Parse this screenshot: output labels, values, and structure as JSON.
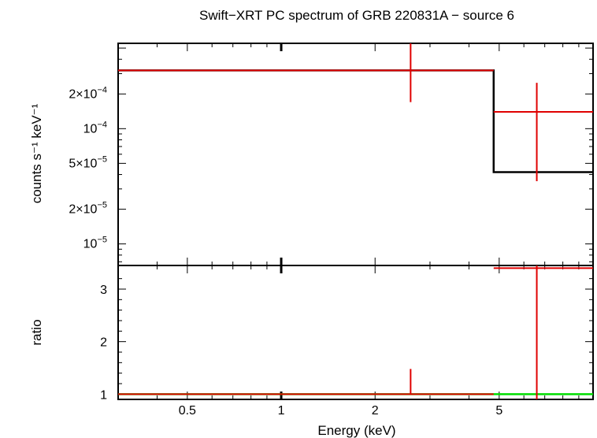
{
  "chart_data": {
    "type": "line",
    "title": "Swift−XRT PC spectrum of GRB 220831A − source 6",
    "xlabel": "Energy (keV)",
    "x_scale": "log",
    "xlim": [
      0.3,
      10
    ],
    "x_ticks": [
      "0.5",
      "1",
      "2",
      "5"
    ],
    "colors": {
      "data": "#e00000",
      "model": "#000000",
      "unity": "#00dd00",
      "frame": "#000000"
    },
    "panels": [
      {
        "name": "spectrum",
        "ylabel": "counts s⁻¹ keV⁻¹",
        "y_scale": "log",
        "ylim": [
          6.5e-06,
          0.00055
        ],
        "y_ticks": [
          {
            "value": 0.0002,
            "mant": "2×10",
            "exp": "−4"
          },
          {
            "value": 0.0001,
            "mant": "10",
            "exp": "−4"
          },
          {
            "value": 5e-05,
            "mant": "5×10",
            "exp": "−5"
          },
          {
            "value": 2e-05,
            "mant": "2×10",
            "exp": "−5"
          },
          {
            "value": 1e-05,
            "mant": "10",
            "exp": "−5"
          }
        ],
        "data": [
          {
            "x": 2.6,
            "xerr": [
              0.3,
              4.8
            ],
            "y": 0.00032,
            "yerr": [
              0.00017,
              0.00055
            ]
          },
          {
            "x": 6.6,
            "xerr": [
              4.8,
              10
            ],
            "y": 0.00014,
            "yerr": [
              3.5e-05,
              0.00025
            ]
          }
        ],
        "model": [
          {
            "x0": 0.3,
            "x1": 4.8,
            "y": 0.00032
          },
          {
            "x0": 4.8,
            "x1": 10,
            "y": 4.2e-05
          }
        ]
      },
      {
        "name": "ratio",
        "ylabel": "ratio",
        "y_scale": "linear",
        "ylim": [
          0.9,
          3.45
        ],
        "y_ticks": [
          {
            "value": 1,
            "label": "1"
          },
          {
            "value": 2,
            "label": "2"
          },
          {
            "value": 3,
            "label": "3"
          }
        ],
        "data": [
          {
            "x": 2.6,
            "xerr": [
              0.3,
              4.8
            ],
            "y": 1.0,
            "yerr": [
              1.0,
              1.48
            ]
          },
          {
            "x": 6.6,
            "xerr": [
              4.8,
              10
            ],
            "y": 3.4,
            "yerr": [
              0.9,
              3.45
            ]
          }
        ],
        "unity": 1
      }
    ]
  }
}
